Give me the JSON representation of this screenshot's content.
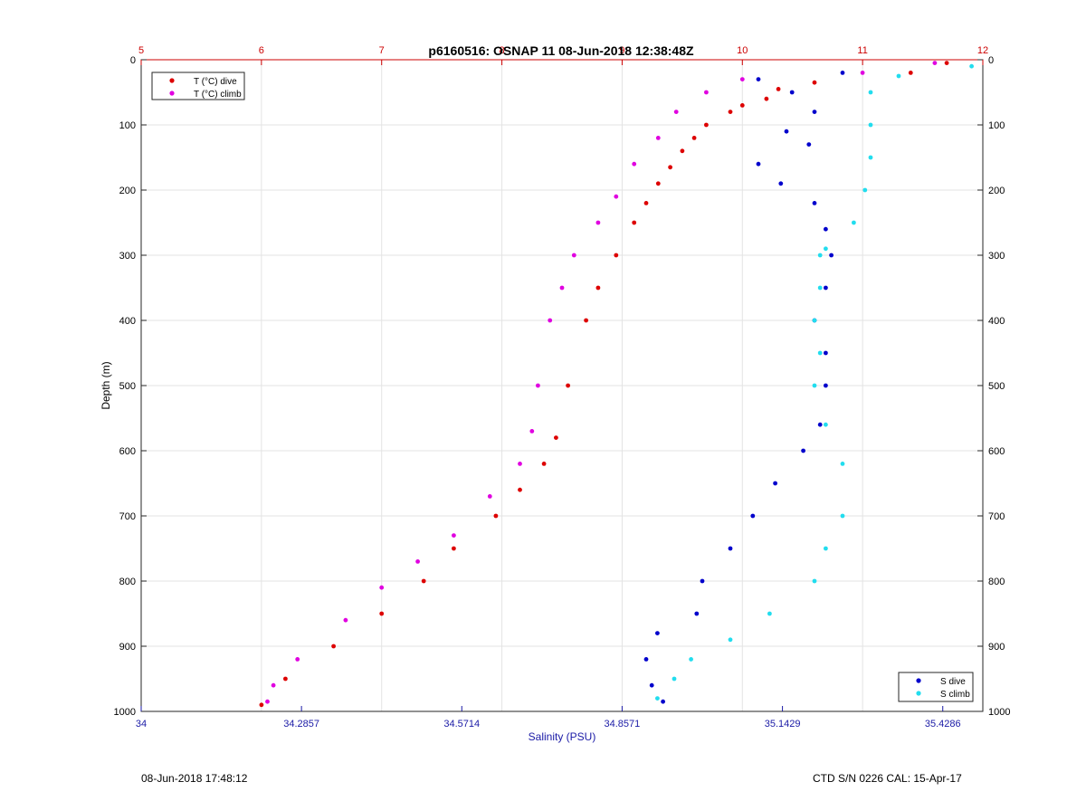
{
  "chart_data": {
    "type": "scatter",
    "title": "p6160516: OSNAP 11 08-Jun-2018 12:38:48Z",
    "ylabel": "Depth (m)",
    "xlabel_bottom": "Salinity (PSU)",
    "y_range": [
      0,
      1000
    ],
    "y_reversed": true,
    "y_ticks": [
      0,
      100,
      200,
      300,
      400,
      500,
      600,
      700,
      800,
      900,
      1000
    ],
    "x_top": {
      "range": [
        5,
        12
      ],
      "ticks": [
        5,
        6,
        7,
        8,
        9,
        10,
        11,
        12
      ],
      "color": "#cc0000"
    },
    "x_bottom": {
      "range": [
        34,
        35.5
      ],
      "ticks": [
        34,
        34.2857,
        34.5714,
        34.8571,
        35.1429,
        35.4286
      ],
      "tick_labels": [
        "34",
        "34.2857",
        "34.5714",
        "34.8571",
        "35.1429",
        "35.4286"
      ],
      "color": "#1a1aa6"
    },
    "grid": true,
    "legend_top_left": [
      "T (°C) dive",
      "T (°C) climb"
    ],
    "legend_bottom_right": [
      "S dive",
      "S climb"
    ],
    "series": [
      {
        "name": "T (°C) dive",
        "axis": "top",
        "color": "#dd0000",
        "points": [
          [
            11.7,
            5
          ],
          [
            11.4,
            20
          ],
          [
            10.6,
            35
          ],
          [
            10.3,
            45
          ],
          [
            10.2,
            60
          ],
          [
            10.0,
            70
          ],
          [
            9.9,
            80
          ],
          [
            9.7,
            100
          ],
          [
            9.6,
            120
          ],
          [
            9.5,
            140
          ],
          [
            9.4,
            165
          ],
          [
            9.3,
            190
          ],
          [
            9.2,
            220
          ],
          [
            9.1,
            250
          ],
          [
            8.95,
            300
          ],
          [
            8.8,
            350
          ],
          [
            8.7,
            400
          ],
          [
            8.55,
            500
          ],
          [
            8.45,
            580
          ],
          [
            8.35,
            620
          ],
          [
            8.15,
            660
          ],
          [
            7.95,
            700
          ],
          [
            7.6,
            750
          ],
          [
            7.35,
            800
          ],
          [
            7.0,
            850
          ],
          [
            6.6,
            900
          ],
          [
            6.2,
            950
          ],
          [
            6.0,
            990
          ]
        ]
      },
      {
        "name": "T (°C) climb",
        "axis": "top",
        "color": "#e000e0",
        "points": [
          [
            11.6,
            5
          ],
          [
            11.0,
            20
          ],
          [
            10.0,
            30
          ],
          [
            9.7,
            50
          ],
          [
            9.45,
            80
          ],
          [
            9.3,
            120
          ],
          [
            9.1,
            160
          ],
          [
            8.95,
            210
          ],
          [
            8.8,
            250
          ],
          [
            8.6,
            300
          ],
          [
            8.5,
            350
          ],
          [
            8.4,
            400
          ],
          [
            8.3,
            500
          ],
          [
            8.25,
            570
          ],
          [
            8.15,
            620
          ],
          [
            7.9,
            670
          ],
          [
            7.6,
            730
          ],
          [
            7.3,
            770
          ],
          [
            7.0,
            810
          ],
          [
            6.7,
            860
          ],
          [
            6.3,
            920
          ],
          [
            6.1,
            960
          ],
          [
            6.05,
            985
          ]
        ]
      },
      {
        "name": "S dive",
        "axis": "bottom",
        "color": "#0000cc",
        "points": [
          [
            35.25,
            20
          ],
          [
            35.1,
            30
          ],
          [
            35.16,
            50
          ],
          [
            35.2,
            80
          ],
          [
            35.15,
            110
          ],
          [
            35.19,
            130
          ],
          [
            35.1,
            160
          ],
          [
            35.14,
            190
          ],
          [
            35.2,
            220
          ],
          [
            35.22,
            260
          ],
          [
            35.23,
            300
          ],
          [
            35.22,
            350
          ],
          [
            35.2,
            400
          ],
          [
            35.22,
            450
          ],
          [
            35.22,
            500
          ],
          [
            35.21,
            560
          ],
          [
            35.18,
            600
          ],
          [
            35.13,
            650
          ],
          [
            35.09,
            700
          ],
          [
            35.05,
            750
          ],
          [
            35.0,
            800
          ],
          [
            34.99,
            850
          ],
          [
            34.92,
            880
          ],
          [
            34.9,
            920
          ],
          [
            34.91,
            960
          ],
          [
            34.93,
            985
          ]
        ]
      },
      {
        "name": "S climb",
        "axis": "bottom",
        "color": "#22ddee",
        "points": [
          [
            35.48,
            10
          ],
          [
            35.35,
            25
          ],
          [
            35.3,
            50
          ],
          [
            35.3,
            100
          ],
          [
            35.3,
            150
          ],
          [
            35.29,
            200
          ],
          [
            35.27,
            250
          ],
          [
            35.22,
            290
          ],
          [
            35.21,
            300
          ],
          [
            35.21,
            350
          ],
          [
            35.2,
            400
          ],
          [
            35.21,
            450
          ],
          [
            35.2,
            500
          ],
          [
            35.22,
            560
          ],
          [
            35.25,
            620
          ],
          [
            35.25,
            700
          ],
          [
            35.22,
            750
          ],
          [
            35.2,
            800
          ],
          [
            35.12,
            850
          ],
          [
            35.05,
            890
          ],
          [
            34.98,
            920
          ],
          [
            34.95,
            950
          ],
          [
            34.92,
            980
          ]
        ]
      }
    ]
  },
  "footer": {
    "left": "08-Jun-2018 17:48:12",
    "right": "CTD S/N 0226  CAL: 15-Apr-17"
  }
}
